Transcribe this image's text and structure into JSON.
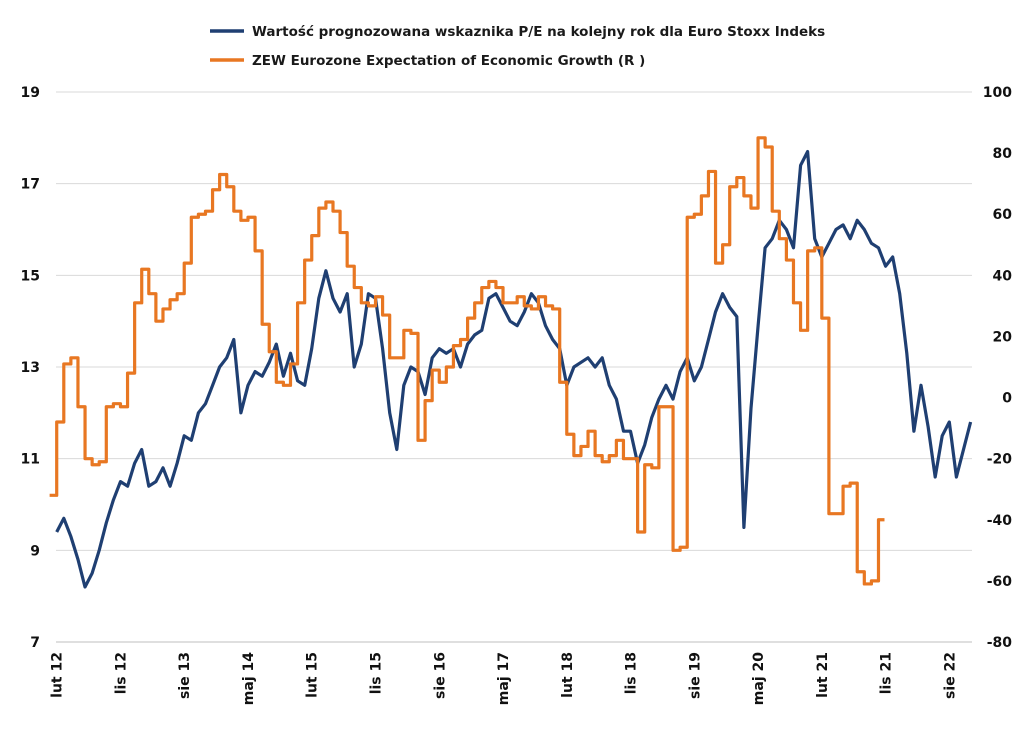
{
  "chart_data": {
    "type": "line",
    "title": "",
    "grid": true,
    "legend_placement": "top-center",
    "x_ticks": [
      "lut 12",
      "lis 12",
      "sie 13",
      "maj 14",
      "lut 15",
      "lis 15",
      "sie 16",
      "maj 17",
      "lut 18",
      "lis 18",
      "sie 19",
      "maj 20",
      "lut 21",
      "lis 21",
      "sie 22"
    ],
    "x_range": [
      "2012-02",
      "2022-09"
    ],
    "y_left": {
      "ticks": [
        19,
        17,
        15,
        13,
        11,
        9,
        7
      ],
      "range": [
        7,
        19
      ]
    },
    "y_right": {
      "ticks": [
        100,
        80,
        60,
        40,
        20,
        0,
        -20,
        -40,
        -60,
        -80
      ],
      "range": [
        -80,
        100
      ]
    },
    "series": [
      {
        "name": "Wartość prognozowana wskaznika P/E na kolejny rok dla Euro Stoxx Indeks",
        "axis": "left",
        "color": "#1f3f72",
        "points": [
          [
            "2012-02",
            9.4
          ],
          [
            "2012-03",
            9.7
          ],
          [
            "2012-04",
            9.3
          ],
          [
            "2012-05",
            8.8
          ],
          [
            "2012-06",
            8.2
          ],
          [
            "2012-07",
            8.5
          ],
          [
            "2012-08",
            9.0
          ],
          [
            "2012-09",
            9.6
          ],
          [
            "2012-10",
            10.1
          ],
          [
            "2012-11",
            10.5
          ],
          [
            "2012-12",
            10.4
          ],
          [
            "2013-01",
            10.9
          ],
          [
            "2013-02",
            11.2
          ],
          [
            "2013-03",
            10.4
          ],
          [
            "2013-04",
            10.5
          ],
          [
            "2013-05",
            10.8
          ],
          [
            "2013-06",
            10.4
          ],
          [
            "2013-07",
            10.9
          ],
          [
            "2013-08",
            11.5
          ],
          [
            "2013-09",
            11.4
          ],
          [
            "2013-10",
            12.0
          ],
          [
            "2013-11",
            12.2
          ],
          [
            "2013-12",
            12.6
          ],
          [
            "2014-01",
            13.0
          ],
          [
            "2014-02",
            13.2
          ],
          [
            "2014-03",
            13.6
          ],
          [
            "2014-04",
            12.0
          ],
          [
            "2014-05",
            12.6
          ],
          [
            "2014-06",
            12.9
          ],
          [
            "2014-07",
            12.8
          ],
          [
            "2014-08",
            13.1
          ],
          [
            "2014-09",
            13.5
          ],
          [
            "2014-10",
            12.8
          ],
          [
            "2014-11",
            13.3
          ],
          [
            "2014-12",
            12.7
          ],
          [
            "2015-01",
            12.6
          ],
          [
            "2015-02",
            13.4
          ],
          [
            "2015-03",
            14.5
          ],
          [
            "2015-04",
            15.1
          ],
          [
            "2015-05",
            14.5
          ],
          [
            "2015-06",
            14.2
          ],
          [
            "2015-07",
            14.6
          ],
          [
            "2015-08",
            13.0
          ],
          [
            "2015-09",
            13.5
          ],
          [
            "2015-10",
            14.6
          ],
          [
            "2015-11",
            14.5
          ],
          [
            "2015-12",
            13.4
          ],
          [
            "2016-01",
            12.0
          ],
          [
            "2016-02",
            11.2
          ],
          [
            "2016-03",
            12.6
          ],
          [
            "2016-04",
            13.0
          ],
          [
            "2016-05",
            12.9
          ],
          [
            "2016-06",
            12.4
          ],
          [
            "2016-07",
            13.2
          ],
          [
            "2016-08",
            13.4
          ],
          [
            "2016-09",
            13.3
          ],
          [
            "2016-10",
            13.4
          ],
          [
            "2016-11",
            13.0
          ],
          [
            "2016-12",
            13.5
          ],
          [
            "2017-01",
            13.7
          ],
          [
            "2017-02",
            13.8
          ],
          [
            "2017-03",
            14.5
          ],
          [
            "2017-04",
            14.6
          ],
          [
            "2017-05",
            14.3
          ],
          [
            "2017-06",
            14.0
          ],
          [
            "2017-07",
            13.9
          ],
          [
            "2017-08",
            14.2
          ],
          [
            "2017-09",
            14.6
          ],
          [
            "2017-10",
            14.4
          ],
          [
            "2017-11",
            13.9
          ],
          [
            "2017-12",
            13.6
          ],
          [
            "2018-01",
            13.4
          ],
          [
            "2018-02",
            12.6
          ],
          [
            "2018-03",
            13.0
          ],
          [
            "2018-04",
            13.1
          ],
          [
            "2018-05",
            13.2
          ],
          [
            "2018-06",
            13.0
          ],
          [
            "2018-07",
            13.2
          ],
          [
            "2018-08",
            12.6
          ],
          [
            "2018-09",
            12.3
          ],
          [
            "2018-10",
            11.6
          ],
          [
            "2018-11",
            11.6
          ],
          [
            "2018-12",
            10.9
          ],
          [
            "2019-01",
            11.3
          ],
          [
            "2019-02",
            11.9
          ],
          [
            "2019-03",
            12.3
          ],
          [
            "2019-04",
            12.6
          ],
          [
            "2019-05",
            12.3
          ],
          [
            "2019-06",
            12.9
          ],
          [
            "2019-07",
            13.2
          ],
          [
            "2019-08",
            12.7
          ],
          [
            "2019-09",
            13.0
          ],
          [
            "2019-10",
            13.6
          ],
          [
            "2019-11",
            14.2
          ],
          [
            "2019-12",
            14.6
          ],
          [
            "2020-01",
            14.3
          ],
          [
            "2020-02",
            14.1
          ],
          [
            "2020-03",
            9.5
          ],
          [
            "2020-04",
            12.1
          ],
          [
            "2020-05",
            13.9
          ],
          [
            "2020-06",
            15.6
          ],
          [
            "2020-07",
            15.8
          ],
          [
            "2020-08",
            16.2
          ],
          [
            "2020-09",
            16.0
          ],
          [
            "2020-10",
            15.6
          ],
          [
            "2020-11",
            17.4
          ],
          [
            "2020-12",
            17.7
          ],
          [
            "2021-01",
            15.8
          ],
          [
            "2021-02",
            15.4
          ],
          [
            "2021-03",
            15.7
          ],
          [
            "2021-04",
            16.0
          ],
          [
            "2021-05",
            16.1
          ],
          [
            "2021-06",
            15.8
          ],
          [
            "2021-07",
            16.2
          ],
          [
            "2021-08",
            16.0
          ],
          [
            "2021-09",
            15.7
          ],
          [
            "2021-10",
            15.6
          ],
          [
            "2021-11",
            15.2
          ],
          [
            "2021-12",
            15.4
          ],
          [
            "2022-01",
            14.6
          ],
          [
            "2022-02",
            13.3
          ],
          [
            "2022-03",
            11.6
          ],
          [
            "2022-04",
            12.6
          ],
          [
            "2022-05",
            11.7
          ],
          [
            "2022-06",
            10.6
          ],
          [
            "2022-07",
            11.5
          ],
          [
            "2022-08",
            11.8
          ],
          [
            "2022-09",
            10.6
          ],
          [
            "2022-10",
            11.2
          ],
          [
            "2022-11",
            11.8
          ]
        ]
      },
      {
        "name": "ZEW Eurozone Expectation of Economic Growth (R )",
        "axis": "right",
        "color": "#e87722",
        "points": [
          [
            "2012-01",
            -32
          ],
          [
            "2012-02",
            -8
          ],
          [
            "2012-03",
            11
          ],
          [
            "2012-04",
            13
          ],
          [
            "2012-05",
            -3
          ],
          [
            "2012-06",
            -20
          ],
          [
            "2012-07",
            -22
          ],
          [
            "2012-08",
            -21
          ],
          [
            "2012-09",
            -3
          ],
          [
            "2012-10",
            -2
          ],
          [
            "2012-11",
            -3
          ],
          [
            "2012-12",
            8
          ],
          [
            "2013-01",
            31
          ],
          [
            "2013-02",
            42
          ],
          [
            "2013-03",
            34
          ],
          [
            "2013-04",
            25
          ],
          [
            "2013-05",
            29
          ],
          [
            "2013-06",
            32
          ],
          [
            "2013-07",
            34
          ],
          [
            "2013-08",
            44
          ],
          [
            "2013-09",
            59
          ],
          [
            "2013-10",
            60
          ],
          [
            "2013-11",
            61
          ],
          [
            "2013-12",
            68
          ],
          [
            "2014-01",
            73
          ],
          [
            "2014-02",
            69
          ],
          [
            "2014-03",
            61
          ],
          [
            "2014-04",
            58
          ],
          [
            "2014-05",
            59
          ],
          [
            "2014-06",
            48
          ],
          [
            "2014-07",
            24
          ],
          [
            "2014-08",
            15
          ],
          [
            "2014-09",
            5
          ],
          [
            "2014-10",
            4
          ],
          [
            "2014-11",
            11
          ],
          [
            "2014-12",
            31
          ],
          [
            "2015-01",
            45
          ],
          [
            "2015-02",
            53
          ],
          [
            "2015-03",
            62
          ],
          [
            "2015-04",
            64
          ],
          [
            "2015-05",
            61
          ],
          [
            "2015-06",
            54
          ],
          [
            "2015-07",
            43
          ],
          [
            "2015-08",
            36
          ],
          [
            "2015-09",
            31
          ],
          [
            "2015-10",
            30
          ],
          [
            "2015-11",
            33
          ],
          [
            "2015-12",
            27
          ],
          [
            "2016-01",
            13
          ],
          [
            "2016-02",
            13
          ],
          [
            "2016-03",
            22
          ],
          [
            "2016-04",
            21
          ],
          [
            "2016-05",
            -14
          ],
          [
            "2016-06",
            -1
          ],
          [
            "2016-07",
            9
          ],
          [
            "2016-08",
            5
          ],
          [
            "2016-09",
            10
          ],
          [
            "2016-10",
            17
          ],
          [
            "2016-11",
            19
          ],
          [
            "2016-12",
            26
          ],
          [
            "2017-01",
            31
          ],
          [
            "2017-02",
            36
          ],
          [
            "2017-03",
            38
          ],
          [
            "2017-04",
            36
          ],
          [
            "2017-05",
            31
          ],
          [
            "2017-06",
            31
          ],
          [
            "2017-07",
            33
          ],
          [
            "2017-08",
            30
          ],
          [
            "2017-09",
            29
          ],
          [
            "2017-10",
            33
          ],
          [
            "2017-11",
            30
          ],
          [
            "2017-12",
            29
          ],
          [
            "2018-01",
            5
          ],
          [
            "2018-02",
            -12
          ],
          [
            "2018-03",
            -19
          ],
          [
            "2018-04",
            -16
          ],
          [
            "2018-05",
            -11
          ],
          [
            "2018-06",
            -19
          ],
          [
            "2018-07",
            -21
          ],
          [
            "2018-08",
            -19
          ],
          [
            "2018-09",
            -14
          ],
          [
            "2018-10",
            -20
          ],
          [
            "2018-11",
            -20
          ],
          [
            "2018-12",
            -44
          ],
          [
            "2019-01",
            -22
          ],
          [
            "2019-02",
            -23
          ],
          [
            "2019-03",
            -3
          ],
          [
            "2019-04",
            -3
          ],
          [
            "2019-05",
            -50
          ],
          [
            "2019-06",
            -49
          ],
          [
            "2019-07",
            59
          ],
          [
            "2019-08",
            60
          ],
          [
            "2019-09",
            66
          ],
          [
            "2019-10",
            74
          ],
          [
            "2019-11",
            44
          ],
          [
            "2019-12",
            50
          ],
          [
            "2020-01",
            69
          ],
          [
            "2020-02",
            72
          ],
          [
            "2020-03",
            66
          ],
          [
            "2020-04",
            62
          ],
          [
            "2020-05",
            85
          ],
          [
            "2020-06",
            82
          ],
          [
            "2020-07",
            61
          ],
          [
            "2020-08",
            52
          ],
          [
            "2020-09",
            45
          ],
          [
            "2020-10",
            31
          ],
          [
            "2020-11",
            22
          ],
          [
            "2020-12",
            48
          ],
          [
            "2021-01",
            49
          ],
          [
            "2021-02",
            26
          ],
          [
            "2021-03",
            -38
          ],
          [
            "2021-04",
            -38
          ],
          [
            "2021-05",
            -29
          ],
          [
            "2021-06",
            -28
          ],
          [
            "2021-07",
            -57
          ],
          [
            "2021-08",
            -61
          ],
          [
            "2021-09",
            -60
          ],
          [
            "2021-10",
            -40
          ]
        ]
      }
    ]
  }
}
